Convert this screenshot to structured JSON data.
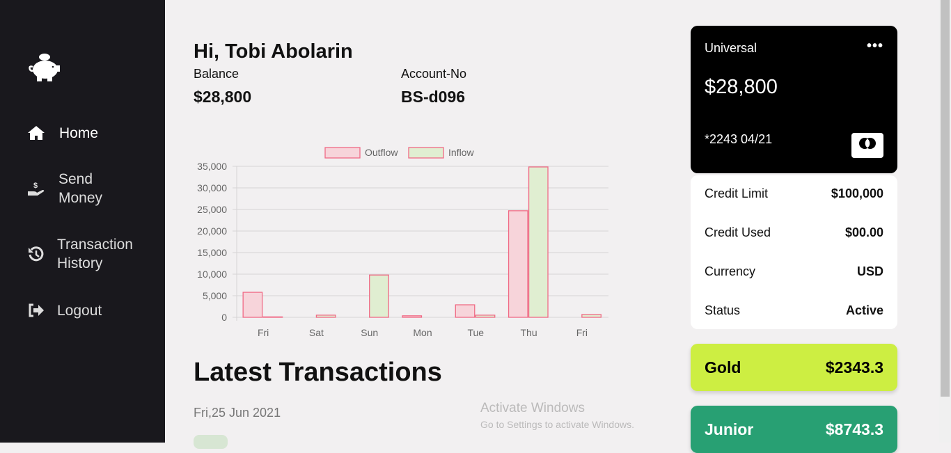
{
  "sidebar": {
    "items": [
      {
        "label": "Home",
        "icon": "home-icon"
      },
      {
        "label": "Send Money",
        "icon": "hand-holding-dollar-icon"
      },
      {
        "label": "Transaction History",
        "icon": "history-icon"
      },
      {
        "label": "Logout",
        "icon": "sign-out-icon"
      }
    ]
  },
  "header": {
    "greeting": "Hi, Tobi Abolarin",
    "balance_label": "Balance",
    "balance": "$28,800",
    "account_label": "Account-No",
    "account": "BS-d096"
  },
  "chart_data": {
    "type": "bar",
    "categories": [
      "Fri",
      "Sat",
      "Sun",
      "Mon",
      "Tue",
      "Thu",
      "Fri"
    ],
    "series": [
      {
        "name": "Outflow",
        "values": [
          5800,
          0,
          0,
          350,
          2900,
          24700,
          0
        ],
        "color": "#f7d4da",
        "border": "#f06a85"
      },
      {
        "name": "Inflow",
        "values": [
          100,
          500,
          9800,
          0,
          500,
          34850,
          650
        ],
        "color": "#e0eed1",
        "border": "#f06a85"
      }
    ],
    "yticks": [
      "0",
      "5,000",
      "10,000",
      "15,000",
      "20,000",
      "25,000",
      "30,000",
      "35,000"
    ],
    "ylim": [
      0,
      35000
    ],
    "grid": true,
    "legend": "top"
  },
  "transactions": {
    "title": "Latest Transactions",
    "date": "Fri,25 Jun 2021"
  },
  "card": {
    "name": "Universal",
    "balance": "$28,800",
    "number": "*2243 04/21",
    "brand": "mastercard"
  },
  "details": [
    {
      "label": "Credit Limit",
      "value": "$100,000"
    },
    {
      "label": "Credit Used",
      "value": "$00.00"
    },
    {
      "label": "Currency",
      "value": "USD"
    },
    {
      "label": "Status",
      "value": "Active"
    }
  ],
  "tiers": [
    {
      "name": "Gold",
      "value": "$2343.3",
      "color": "#cdee42"
    },
    {
      "name": "Junior",
      "value": "$8743.3",
      "color": "#28a073"
    }
  ],
  "watermark": {
    "title": "Activate Windows",
    "sub": "Go to Settings to activate Windows."
  }
}
